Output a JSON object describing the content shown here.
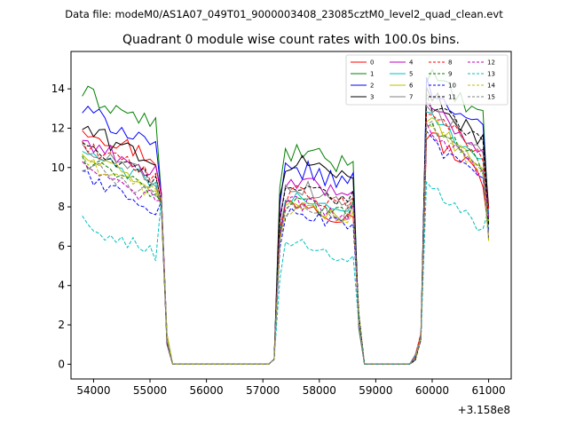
{
  "header": {
    "data_file": "Data file: modeM0/AS1A07_049T01_9000003408_23085cztM0_level2_quad_clean.evt"
  },
  "chart_data": {
    "type": "line",
    "title": "Quadrant 0 module wise count rates with 100.0s bins.",
    "xlabel": "",
    "ylabel": "",
    "x_offset_label": "+3.158e8",
    "xlim": [
      53600,
      61400
    ],
    "ylim": [
      -0.75,
      15.9
    ],
    "x_ticks": [
      54000,
      55000,
      56000,
      57000,
      58000,
      59000,
      60000,
      61000
    ],
    "x_tick_labels": [
      "54000",
      "55000",
      "56000",
      "57000",
      "58000",
      "59000",
      "60000",
      "61000"
    ],
    "y_ticks": [
      0,
      2,
      4,
      6,
      8,
      10,
      12,
      14
    ],
    "y_tick_labels": [
      "0",
      "2",
      "4",
      "6",
      "8",
      "10",
      "12",
      "14"
    ],
    "legend_location": "upper right",
    "legend_columns": 4,
    "gaps": [
      {
        "start": 55300,
        "end": 57200
      },
      {
        "start": 58700,
        "end": 59700
      }
    ],
    "segments": [
      {
        "start": 53800,
        "end": 55200
      },
      {
        "start": 57300,
        "end": 58600
      },
      {
        "start": 59900,
        "end": 61000
      }
    ],
    "series": [
      {
        "name": "0",
        "color": "#ff0000",
        "dash": "solid",
        "levels": [
          11.3,
          8.0,
          10.6
        ],
        "noise": 0.5
      },
      {
        "name": "1",
        "color": "#008000",
        "dash": "solid",
        "levels": [
          13.0,
          10.5,
          13.6
        ],
        "noise": 0.5
      },
      {
        "name": "2",
        "color": "#0000ff",
        "dash": "solid",
        "levels": [
          12.1,
          9.6,
          13.0
        ],
        "noise": 0.5
      },
      {
        "name": "3",
        "color": "#000000",
        "dash": "solid",
        "levels": [
          11.2,
          10.0,
          12.6
        ],
        "noise": 0.5
      },
      {
        "name": "4",
        "color": "#bf00bf",
        "dash": "solid",
        "levels": [
          10.6,
          9.0,
          12.0
        ],
        "noise": 0.4
      },
      {
        "name": "5",
        "color": "#00bfbf",
        "dash": "solid",
        "levels": [
          10.0,
          8.2,
          11.6
        ],
        "noise": 0.4
      },
      {
        "name": "6",
        "color": "#bfbf00",
        "dash": "solid",
        "levels": [
          9.8,
          7.8,
          11.2
        ],
        "noise": 0.4
      },
      {
        "name": "7",
        "color": "#808080",
        "dash": "solid",
        "levels": [
          10.3,
          8.7,
          12.1
        ],
        "noise": 0.4
      },
      {
        "name": "8",
        "color": "#ff0000",
        "dash": "dashed",
        "levels": [
          10.4,
          8.4,
          11.8
        ],
        "noise": 0.4
      },
      {
        "name": "9",
        "color": "#008000",
        "dash": "dashed",
        "levels": [
          9.6,
          8.0,
          11.2
        ],
        "noise": 0.4
      },
      {
        "name": "10",
        "color": "#0000ff",
        "dash": "dashed",
        "levels": [
          8.8,
          7.4,
          10.3
        ],
        "noise": 0.4
      },
      {
        "name": "11",
        "color": "#000000",
        "dash": "dashed",
        "levels": [
          10.2,
          8.8,
          12.3
        ],
        "noise": 0.4
      },
      {
        "name": "12",
        "color": "#bf00bf",
        "dash": "dashed",
        "levels": [
          9.2,
          7.9,
          10.9
        ],
        "noise": 0.4
      },
      {
        "name": "13",
        "color": "#00bfbf",
        "dash": "dashed",
        "levels": [
          6.4,
          5.8,
          8.0
        ],
        "noise": 0.4
      },
      {
        "name": "14",
        "color": "#bfbf00",
        "dash": "dashed",
        "levels": [
          9.5,
          7.8,
          11.0
        ],
        "noise": 0.4
      },
      {
        "name": "15",
        "color": "#808080",
        "dash": "dashed",
        "levels": [
          9.4,
          7.9,
          11.1
        ],
        "noise": 0.4
      }
    ]
  }
}
